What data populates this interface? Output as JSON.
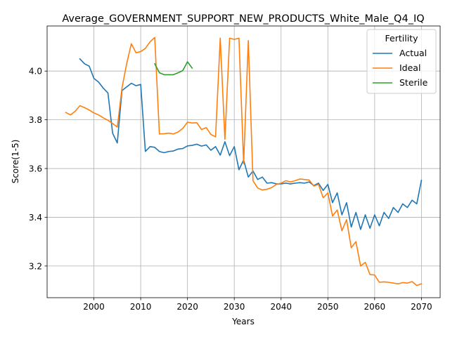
{
  "chart_data": {
    "type": "line",
    "title": "Average_GOVERNMENT_SUPPORT_NEW_PRODUCTS_White_Male_Q4_IQ",
    "xlabel": "Years",
    "ylabel": "Score(1-5)",
    "xlim": [
      1990,
      2074
    ],
    "ylim": [
      3.07,
      4.185
    ],
    "xticks": [
      2000,
      2010,
      2020,
      2030,
      2040,
      2050,
      2060,
      2070
    ],
    "yticks": [
      3.2,
      3.4,
      3.6,
      3.8,
      4.0
    ],
    "grid": true,
    "legend": {
      "title": "Fertility",
      "placement": "upper right"
    },
    "series": [
      {
        "name": "Actual",
        "color": "#1f77b4",
        "x": [
          1997,
          1998,
          1999,
          2000,
          2001,
          2002,
          2003,
          2004,
          2005,
          2006,
          2007,
          2008,
          2009,
          2010,
          2011,
          2012,
          2013,
          2014,
          2015,
          2016,
          2017,
          2018,
          2019,
          2020,
          2021,
          2022,
          2023,
          2024,
          2025,
          2026,
          2027,
          2028,
          2029,
          2030,
          2031,
          2032,
          2033,
          2034,
          2035,
          2036,
          2037,
          2038,
          2039,
          2040,
          2041,
          2042,
          2043,
          2044,
          2045,
          2046,
          2047,
          2048,
          2049,
          2050,
          2051,
          2052,
          2053,
          2054,
          2055,
          2056,
          2057,
          2058,
          2059,
          2060,
          2061,
          2062,
          2063,
          2064,
          2065,
          2066,
          2067,
          2068,
          2069,
          2070
        ],
        "y": [
          4.05,
          4.03,
          4.02,
          3.97,
          3.955,
          3.93,
          3.91,
          3.745,
          3.705,
          3.92,
          3.935,
          3.95,
          3.94,
          3.945,
          3.67,
          3.69,
          3.687,
          3.67,
          3.665,
          3.67,
          3.672,
          3.68,
          3.682,
          3.693,
          3.695,
          3.7,
          3.692,
          3.697,
          3.675,
          3.69,
          3.655,
          3.71,
          3.653,
          3.69,
          3.595,
          3.635,
          3.565,
          3.59,
          3.555,
          3.565,
          3.54,
          3.542,
          3.537,
          3.537,
          3.54,
          3.537,
          3.54,
          3.542,
          3.54,
          3.545,
          3.53,
          3.54,
          3.51,
          3.535,
          3.46,
          3.5,
          3.41,
          3.46,
          3.36,
          3.42,
          3.35,
          3.41,
          3.355,
          3.41,
          3.365,
          3.42,
          3.395,
          3.44,
          3.42,
          3.455,
          3.44,
          3.47,
          3.455,
          3.552
        ]
      },
      {
        "name": "Ideal",
        "color": "#ff7f0e",
        "x": [
          1994,
          1995,
          1996,
          1997,
          1998,
          1999,
          2000,
          2001,
          2002,
          2003,
          2004,
          2005,
          2006,
          2007,
          2008,
          2009,
          2010,
          2011,
          2012,
          2013,
          2014,
          2015,
          2016,
          2017,
          2018,
          2019,
          2020,
          2021,
          2022,
          2023,
          2024,
          2025,
          2026,
          2027,
          2028,
          2029,
          2030,
          2031,
          2032,
          2033,
          2034,
          2035,
          2036,
          2037,
          2038,
          2039,
          2040,
          2041,
          2042,
          2043,
          2044,
          2045,
          2046,
          2047,
          2048,
          2049,
          2050,
          2051,
          2052,
          2053,
          2054,
          2055,
          2056,
          2057,
          2058,
          2059,
          2060,
          2061,
          2062,
          2063,
          2064,
          2065,
          2066,
          2067,
          2068,
          2069,
          2070
        ],
        "y": [
          3.83,
          3.82,
          3.835,
          3.858,
          3.85,
          3.84,
          3.828,
          3.82,
          3.808,
          3.798,
          3.785,
          3.77,
          3.93,
          4.03,
          4.112,
          4.075,
          4.08,
          4.093,
          4.12,
          4.138,
          3.742,
          3.743,
          3.745,
          3.742,
          3.75,
          3.765,
          3.79,
          3.787,
          3.788,
          3.76,
          3.768,
          3.74,
          3.73,
          4.135,
          3.72,
          4.135,
          4.13,
          4.135,
          3.62,
          4.125,
          3.55,
          3.52,
          3.512,
          3.515,
          3.522,
          3.535,
          3.54,
          3.55,
          3.545,
          3.55,
          3.557,
          3.555,
          3.553,
          3.528,
          3.535,
          3.48,
          3.5,
          3.405,
          3.43,
          3.345,
          3.39,
          3.275,
          3.3,
          3.2,
          3.215,
          3.165,
          3.163,
          3.133,
          3.135,
          3.133,
          3.13,
          3.127,
          3.132,
          3.13,
          3.136,
          3.12,
          3.127
        ]
      },
      {
        "name": "Sterile",
        "color": "#2ca02c",
        "x": [
          2013,
          2014,
          2015,
          2016,
          2017,
          2018,
          2019,
          2020,
          2021
        ],
        "y": [
          4.03,
          3.993,
          3.985,
          3.985,
          3.985,
          3.993,
          4.002,
          4.038,
          4.012
        ]
      }
    ]
  }
}
